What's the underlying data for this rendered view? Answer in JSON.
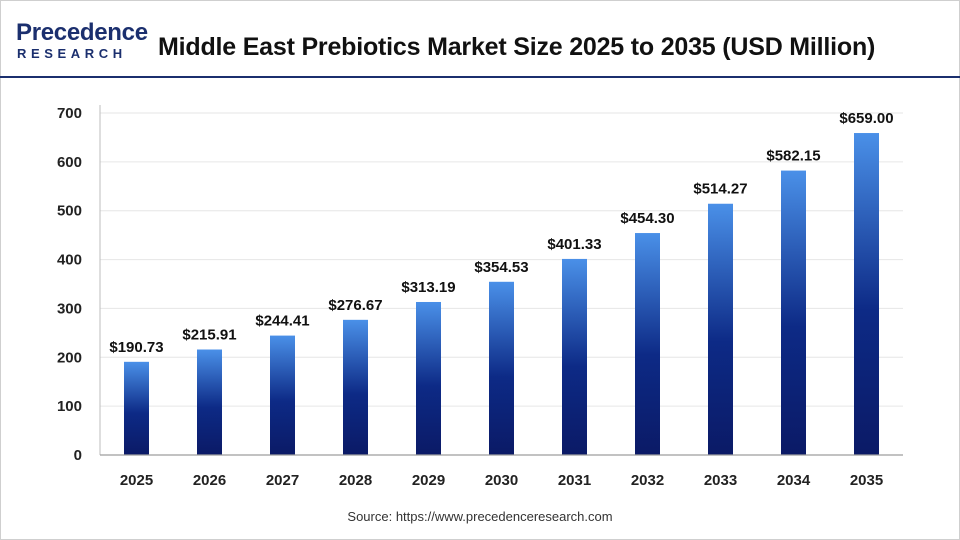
{
  "logo": {
    "word": "Precedence",
    "sub": "RESEARCH"
  },
  "title": "Middle East Prebiotics Market Size 2025 to 2035 (USD Million)",
  "source": "Source: https://www.precedenceresearch.com",
  "colors": {
    "bar_top": "#4a90e8",
    "bar_bottom": "#0b1a66",
    "brand": "#1b2f6e",
    "grid": "#e6e6e6"
  },
  "chart_data": {
    "type": "bar",
    "title": "Middle East Prebiotics Market Size 2025 to 2035 (USD Million)",
    "xlabel": "",
    "ylabel": "",
    "categories": [
      "2025",
      "2026",
      "2027",
      "2028",
      "2029",
      "2030",
      "2031",
      "2032",
      "2033",
      "2034",
      "2035"
    ],
    "values": [
      190.73,
      215.91,
      244.41,
      276.67,
      313.19,
      354.53,
      401.33,
      454.3,
      514.27,
      582.15,
      659.0
    ],
    "data_labels": [
      "$190.73",
      "$215.91",
      "$244.41",
      "$276.67",
      "$313.19",
      "$354.53",
      "$401.33",
      "$454.30",
      "$514.27",
      "$582.15",
      "$659.00"
    ],
    "ylim": [
      0,
      700
    ],
    "yticks": [
      0,
      100,
      200,
      300,
      400,
      500,
      600,
      700
    ],
    "grid": true,
    "legend": "none"
  }
}
